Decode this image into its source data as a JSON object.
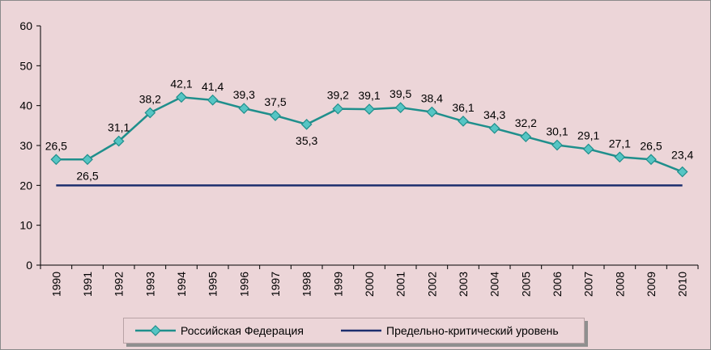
{
  "chart_data": {
    "type": "line",
    "title": "",
    "xlabel": "",
    "ylabel": "",
    "ylim": [
      0,
      60
    ],
    "yticks": [
      0,
      10,
      20,
      30,
      40,
      50,
      60
    ],
    "grid": false,
    "legend_position": "bottom",
    "categories": [
      "1990",
      "1991",
      "1992",
      "1993",
      "1994",
      "1995",
      "1996",
      "1997",
      "1998",
      "1999",
      "2000",
      "2001",
      "2002",
      "2003",
      "2004",
      "2005",
      "2006",
      "2007",
      "2008",
      "2009",
      "2010"
    ],
    "series": [
      {
        "name": "Российская Федерация",
        "color": "#1f8f8c",
        "marker_color": "#56c5c4",
        "marker": "diamond",
        "values": [
          26.5,
          26.5,
          31.1,
          38.2,
          42.1,
          41.4,
          39.3,
          37.5,
          35.3,
          39.2,
          39.1,
          39.5,
          38.4,
          36.1,
          34.3,
          32.2,
          30.1,
          29.1,
          27.1,
          26.5,
          23.4
        ],
        "labels": [
          "26,5",
          "26,5",
          "31,1",
          "38,2",
          "42,1",
          "41,4",
          "39,3",
          "37,5",
          "35,3",
          "39,2",
          "39,1",
          "39,5",
          "38,4",
          "36,1",
          "34,3",
          "32,2",
          "30,1",
          "29,1",
          "27,1",
          "26,5",
          "23,4"
        ]
      },
      {
        "name": "Предельно-критический уровень",
        "color": "#1c2e6e",
        "values": [
          20,
          20,
          20,
          20,
          20,
          20,
          20,
          20,
          20,
          20,
          20,
          20,
          20,
          20,
          20,
          20,
          20,
          20,
          20,
          20,
          20
        ]
      }
    ]
  }
}
